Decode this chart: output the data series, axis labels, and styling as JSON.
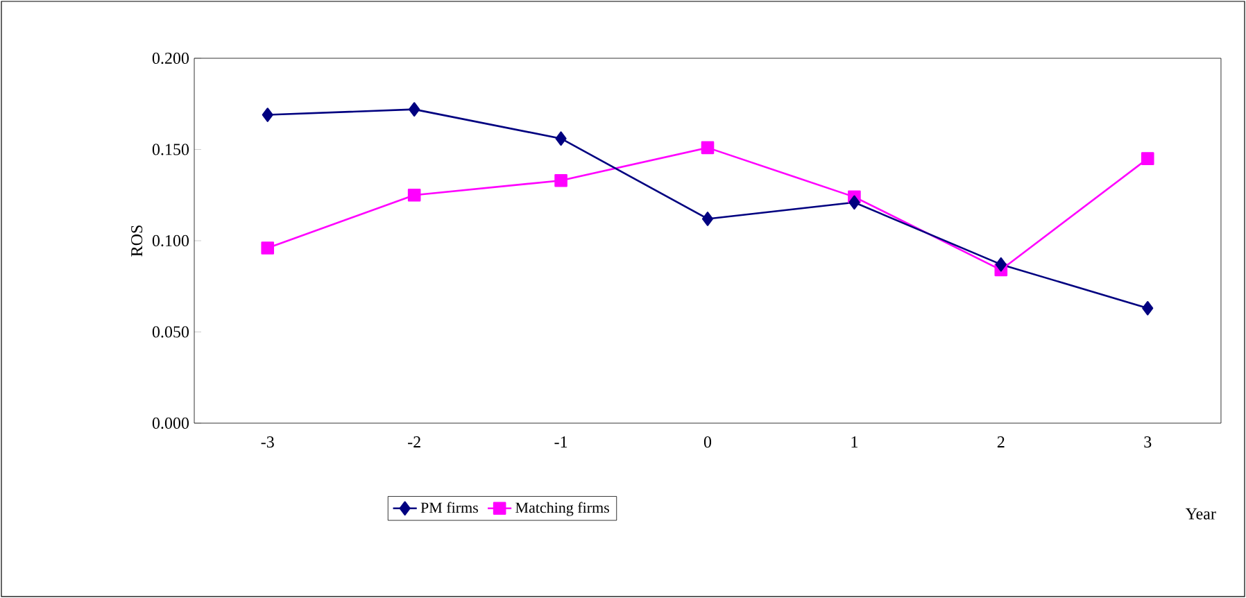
{
  "chart_data": {
    "type": "line",
    "xlabel": "Year",
    "ylabel": "ROS",
    "categories": [
      "-3",
      "-2",
      "-1",
      "0",
      "1",
      "2",
      "3"
    ],
    "series": [
      {
        "name": "PM firms",
        "color": "#000080",
        "marker": "diamond",
        "values": [
          0.169,
          0.172,
          0.156,
          0.112,
          0.121,
          0.087,
          0.063
        ]
      },
      {
        "name": "Matching firms",
        "color": "#ff00ff",
        "marker": "square",
        "values": [
          0.096,
          0.125,
          0.133,
          0.151,
          0.124,
          0.084,
          0.145
        ]
      }
    ],
    "ylim": [
      0,
      0.2
    ],
    "yticks": [
      {
        "value": 0,
        "label": "0.000"
      },
      {
        "value": 0.05,
        "label": "0.050"
      },
      {
        "value": 0.1,
        "label": "0.100"
      },
      {
        "value": 0.15,
        "label": "0.150"
      },
      {
        "value": 0.2,
        "label": "0.200"
      }
    ],
    "grid": false,
    "legend": "bottom",
    "line_style": "solid"
  }
}
